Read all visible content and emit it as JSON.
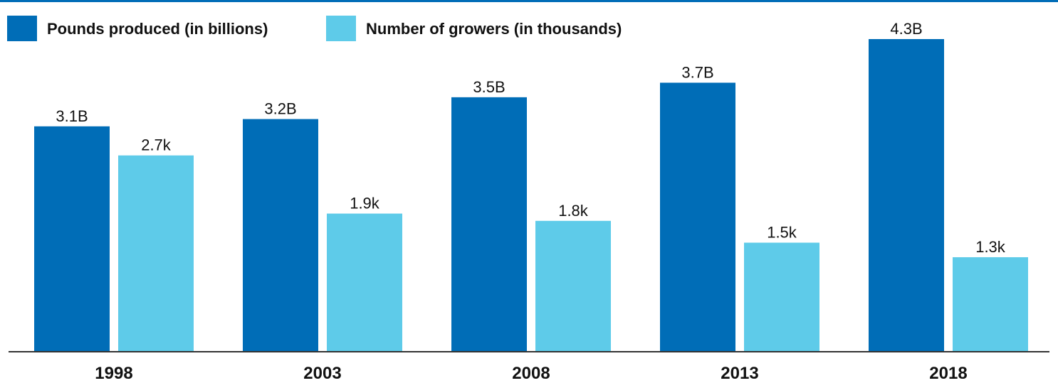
{
  "chart_data": {
    "type": "bar",
    "categories": [
      "1998",
      "2003",
      "2008",
      "2013",
      "2018"
    ],
    "series": [
      {
        "name": "Pounds produced (in billions)",
        "values": [
          3.1,
          3.2,
          3.5,
          3.7,
          4.3
        ],
        "labels": [
          "3.1B",
          "3.2B",
          "3.5B",
          "3.7B",
          "4.3B"
        ],
        "color": "#006db7"
      },
      {
        "name": "Number of growers (in thousands)",
        "values": [
          2.7,
          1.9,
          1.8,
          1.5,
          1.3
        ],
        "labels": [
          "2.7k",
          "1.9k",
          "1.8k",
          "1.5k",
          "1.3k"
        ],
        "color": "#5ecbe9"
      }
    ],
    "title": "",
    "xlabel": "",
    "ylabel": "",
    "ylim": [
      0,
      4.3
    ],
    "grid": false,
    "legend_position": "top-left",
    "accent_rule_color": "#006db7",
    "baseline_color": "#333333"
  }
}
